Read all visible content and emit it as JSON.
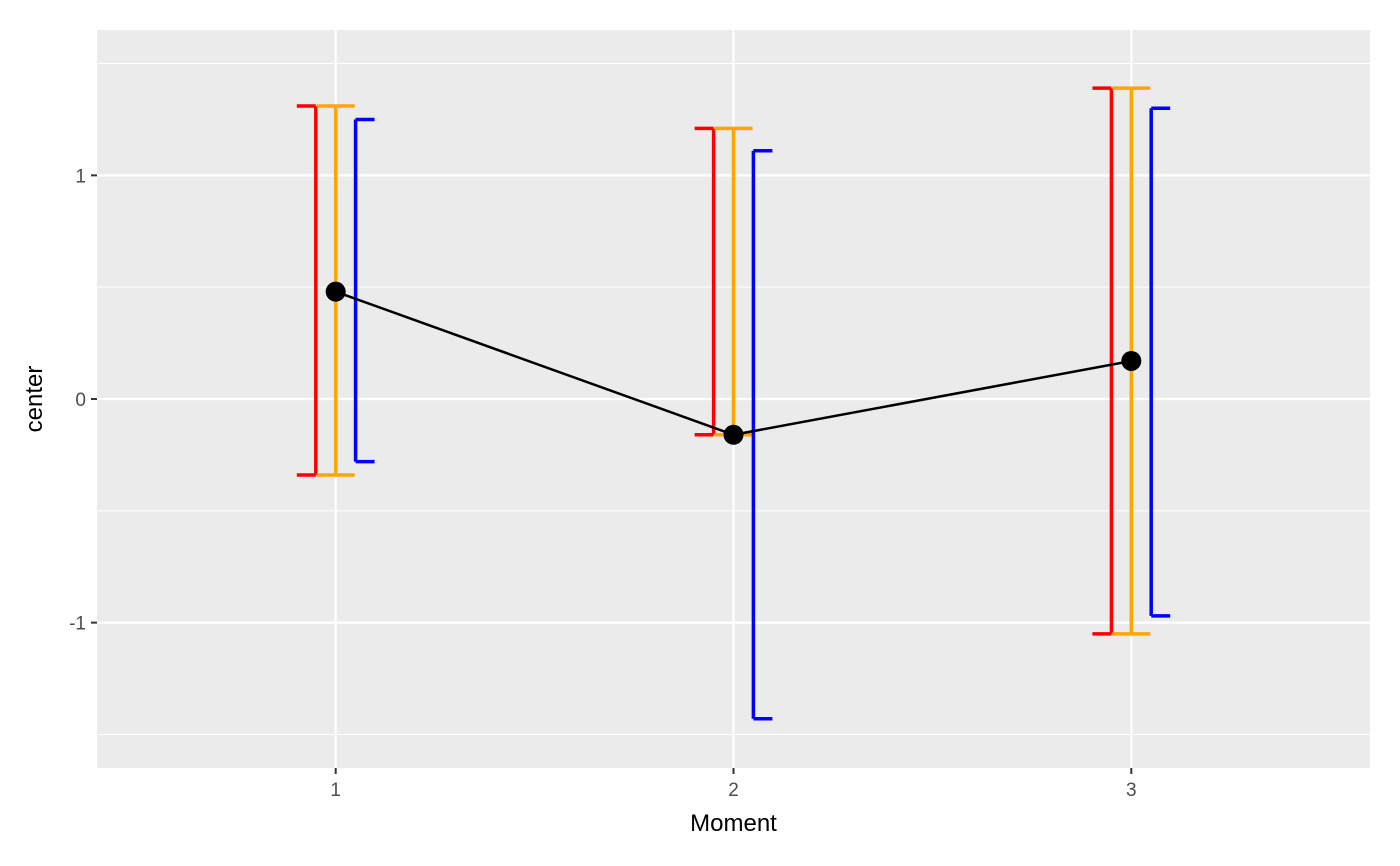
{
  "chart_data": {
    "type": "line",
    "xlabel": "Moment",
    "ylabel": "center",
    "x": [
      1,
      2,
      3
    ],
    "x_tick_labels": [
      "1",
      "2",
      "3"
    ],
    "xlim": [
      0.4,
      3.6
    ],
    "ylim": [
      -1.65,
      1.65
    ],
    "y_ticks": [
      -1,
      0,
      1
    ],
    "y_tick_labels": [
      "-1",
      "0",
      "1"
    ],
    "grid": true,
    "background": "#ebebeb",
    "series": [
      {
        "values": [
          0.48,
          -0.16,
          0.17
        ],
        "color": "#000000"
      }
    ],
    "error_bars": [
      {
        "color": "#ff0000",
        "style": "left-bracket",
        "offset": -0.05,
        "intervals": [
          [
            -0.34,
            1.31
          ],
          [
            -0.16,
            1.21
          ],
          [
            -1.05,
            1.39
          ]
        ]
      },
      {
        "color": "#ffa500",
        "style": "full-bar",
        "offset": 0.0,
        "intervals": [
          [
            -0.34,
            1.31
          ],
          [
            -0.16,
            1.21
          ],
          [
            -1.05,
            1.39
          ]
        ]
      },
      {
        "color": "#0000ff",
        "style": "right-bracket",
        "offset": 0.05,
        "intervals": [
          [
            -0.28,
            1.25
          ],
          [
            -1.43,
            1.11
          ],
          [
            -0.97,
            1.3
          ]
        ]
      }
    ]
  }
}
